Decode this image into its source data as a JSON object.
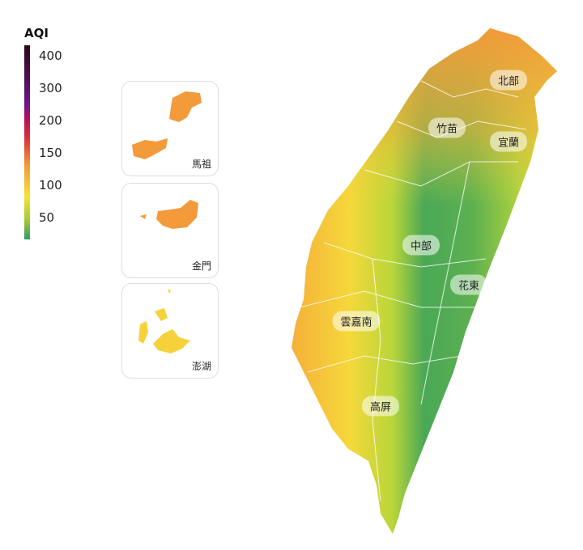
{
  "legend": {
    "title": "AQI",
    "ticks": [
      "400",
      "300",
      "200",
      "150",
      "100",
      "50"
    ],
    "colors": [
      "#2e9a6a",
      "#f5e23a",
      "#f39a3a",
      "#d8333e",
      "#6b148d",
      "#2a0a16"
    ]
  },
  "insets": [
    {
      "label": "馬祖",
      "color": "#f39a3a"
    },
    {
      "label": "金門",
      "color": "#f39a3a"
    },
    {
      "label": "澎湖",
      "color": "#f5d23a"
    }
  ],
  "regions": [
    {
      "label": "北部"
    },
    {
      "label": "竹苗"
    },
    {
      "label": "宜蘭"
    },
    {
      "label": "中部"
    },
    {
      "label": "花東"
    },
    {
      "label": "雲嘉南"
    },
    {
      "label": "高屏"
    }
  ]
}
